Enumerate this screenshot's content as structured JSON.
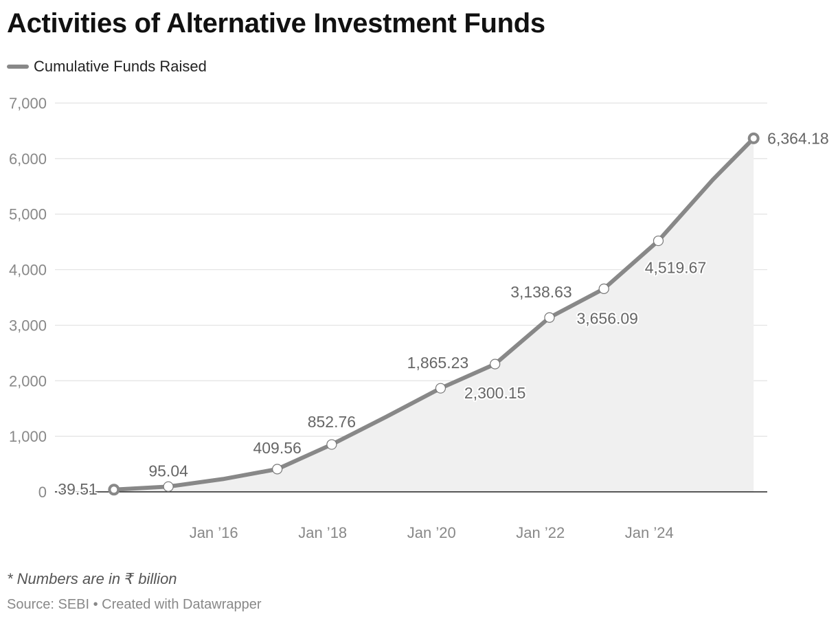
{
  "chart_data": {
    "type": "area",
    "title": "Activities of Alternative Investment Funds",
    "series": [
      {
        "name": "Cumulative Funds Raised",
        "x": [
          "2014-03",
          "2015-03",
          "2016-03",
          "2017-03",
          "2018-03",
          "2019-03",
          "2020-03",
          "2021-03",
          "2022-03",
          "2023-03",
          "2024-03",
          "2025-03",
          "2025-12"
        ],
        "values": [
          39.51,
          95.04,
          230,
          409.56,
          852.76,
          1350,
          1865.23,
          2300.15,
          3138.63,
          3656.09,
          4519.67,
          5620,
          6364.18
        ]
      }
    ],
    "data_labels": [
      {
        "text": "39.51",
        "index": 0
      },
      {
        "text": "95.04",
        "index": 1
      },
      {
        "text": "409.56",
        "index": 3
      },
      {
        "text": "852.76",
        "index": 4
      },
      {
        "text": "1,865.23",
        "index": 6
      },
      {
        "text": "2,300.15",
        "index": 7
      },
      {
        "text": "3,138.63",
        "index": 8
      },
      {
        "text": "3,656.09",
        "index": 9
      },
      {
        "text": "4,519.67",
        "index": 10
      },
      {
        "text": "6,364.18",
        "index": 12
      }
    ],
    "y_ticks": [
      "0",
      "1,000",
      "2,000",
      "3,000",
      "4,000",
      "5,000",
      "6,000",
      "7,000"
    ],
    "y_tick_values": [
      0,
      1000,
      2000,
      3000,
      4000,
      5000,
      6000,
      7000
    ],
    "x_ticks": [
      {
        "label": "Jan ’16",
        "date": "2016-01"
      },
      {
        "label": "Jan ’18",
        "date": "2018-01"
      },
      {
        "label": "Jan ’20",
        "date": "2020-01"
      },
      {
        "label": "Jan ’22",
        "date": "2022-01"
      },
      {
        "label": "Jan ’24",
        "date": "2024-01"
      }
    ],
    "ylim": [
      0,
      7000
    ],
    "xlim": [
      "2013-02",
      "2026-03"
    ],
    "grid": true,
    "legend": "top-left",
    "line_color": "#888888",
    "area_color": "#f0f0f0",
    "gridline_color": "#e2e2e2",
    "axis_line_color": "#222222",
    "tick_label_color": "#888888",
    "data_label_color": "#666666"
  },
  "note": "* Numbers are in ₹ billion",
  "source": "Source: SEBI • Created with Datawrapper"
}
